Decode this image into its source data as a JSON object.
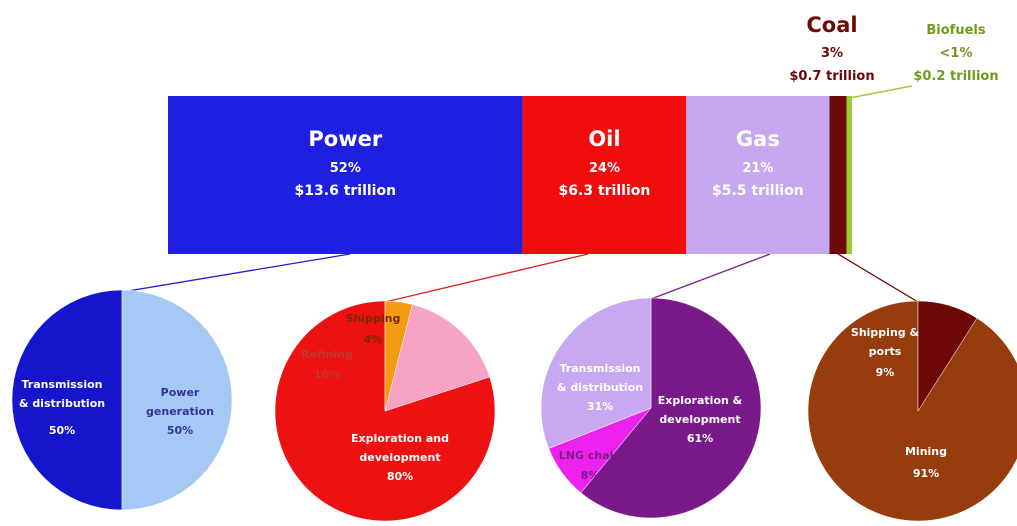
{
  "chart_data": [
    {
      "type": "bar",
      "orientation": "stacked-horizontal",
      "series": [
        {
          "name": "Power",
          "percent": "52%",
          "amount": "$13.6 trillion",
          "share": 52,
          "color": "#1f1fe0",
          "text_color": "#ffffff"
        },
        {
          "name": "Oil",
          "percent": "24%",
          "amount": "$6.3 trillion",
          "share": 24,
          "color": "#f10d0d",
          "text_color": "#ffffff"
        },
        {
          "name": "Gas",
          "percent": "21%",
          "amount": "$5.5 trillion",
          "share": 21,
          "color": "#c7a8f0",
          "text_color": "#ffffff"
        },
        {
          "name": "Coal",
          "percent": "3%",
          "amount": "$0.7 trillion",
          "share": 2.5,
          "color": "#6e0707",
          "text_color": "#6e0707"
        },
        {
          "name": "Biofuels",
          "percent": "<1%",
          "amount": "$0.2 trillion",
          "share": 0.8,
          "color": "#9acd32",
          "text_color": "#6f9a1e"
        }
      ]
    },
    {
      "type": "pie",
      "parent": "Power",
      "slices": [
        {
          "label": "Transmission & distribution",
          "percent": "50%",
          "value": 50,
          "color": "#1515cc",
          "text_color": "#ffffff"
        },
        {
          "label": "Power generation",
          "percent": "50%",
          "value": 50,
          "color": "#a6c8f5",
          "text_color": "#333399"
        }
      ]
    },
    {
      "type": "pie",
      "parent": "Oil",
      "slices": [
        {
          "label": "Exploration and development",
          "percent": "80%",
          "value": 80,
          "color": "#ee1111",
          "text_color": "#ffffff"
        },
        {
          "label": "Refining",
          "percent": "16%",
          "value": 16,
          "color": "#f7a3c6",
          "text_color": "#c0392b"
        },
        {
          "label": "Shipping",
          "percent": "4%",
          "value": 4,
          "color": "#f39c12",
          "text_color": "#7a2a00"
        }
      ]
    },
    {
      "type": "pie",
      "parent": "Gas",
      "slices": [
        {
          "label": "Exploration & development",
          "percent": "61%",
          "value": 61,
          "color": "#7a1a8a",
          "text_color": "#ffffff"
        },
        {
          "label": "LNG chain",
          "percent": "8%",
          "value": 8,
          "color": "#ee22ee",
          "text_color": "#7a1a8a"
        },
        {
          "label": "Transmission & distribution",
          "percent": "31%",
          "value": 31,
          "color": "#c9a8f2",
          "text_color": "#ffffff"
        }
      ]
    },
    {
      "type": "pie",
      "parent": "Coal",
      "slices": [
        {
          "label": "Mining",
          "percent": "91%",
          "value": 91,
          "color": "#963c0d",
          "text_color": "#ffffff"
        },
        {
          "label": "Shipping & ports",
          "percent": "9%",
          "value": 9,
          "color": "#6e0707",
          "text_color": "#ffffff"
        }
      ]
    }
  ]
}
